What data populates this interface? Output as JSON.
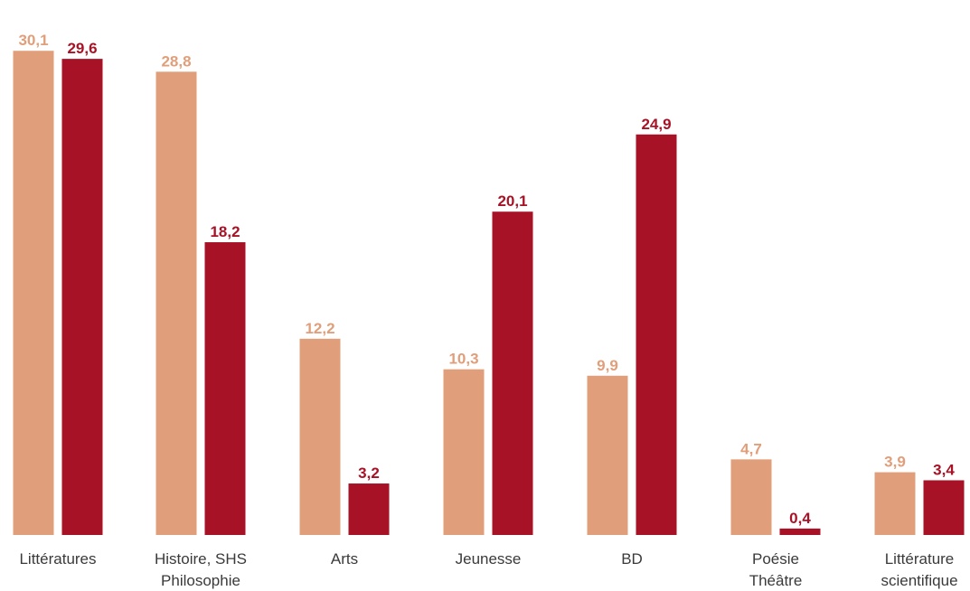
{
  "chart_data": {
    "type": "bar",
    "title": "",
    "xlabel": "",
    "ylabel": "",
    "ylim": [
      0,
      31
    ],
    "grid": false,
    "legend": "none",
    "categories": [
      [
        "Littératures"
      ],
      [
        "Histoire, SHS",
        "Philosophie"
      ],
      [
        "Arts"
      ],
      [
        "Jeunesse"
      ],
      [
        "BD"
      ],
      [
        "Poésie",
        "Théâtre"
      ],
      [
        "Littérature",
        "scientifique"
      ]
    ],
    "series": [
      {
        "color": "#e09f7a",
        "values": [
          30.1,
          28.8,
          12.2,
          10.3,
          9.9,
          4.7,
          3.9
        ],
        "labels": [
          "30,1",
          "28,8",
          "12,2",
          "10,3",
          "9,9",
          "4,7",
          "3,9"
        ]
      },
      {
        "color": "#a81226",
        "values": [
          29.6,
          18.2,
          3.2,
          20.1,
          24.9,
          0.4,
          3.4
        ],
        "labels": [
          "29,6",
          "18,2",
          "3,2",
          "20,1",
          "24,9",
          "0,4",
          "3,4"
        ]
      }
    ]
  }
}
